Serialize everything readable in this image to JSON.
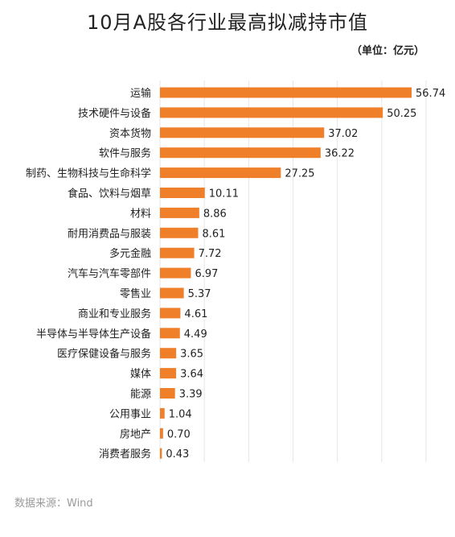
{
  "title": "10月A股各行业最高拟减持市值",
  "unit_note": "（单位：亿元）",
  "source": "数据来源：Wind",
  "colors": {
    "bar": "#f07f2a",
    "grid": "#e6e6e6"
  },
  "chart_data": {
    "type": "bar",
    "orientation": "horizontal",
    "title": "10月A股各行业最高拟减持市值",
    "xlabel": "",
    "ylabel": "",
    "xlim": [
      0,
      60
    ],
    "grid": true,
    "categories": [
      "运输",
      "技术硬件与设备",
      "资本货物",
      "软件与服务",
      "制药、生物科技与生命科学",
      "食品、饮料与烟草",
      "材料",
      "耐用消费品与服装",
      "多元金融",
      "汽车与汽车零部件",
      "零售业",
      "商业和专业服务",
      "半导体与半导体生产设备",
      "医疗保健设备与服务",
      "媒体",
      "能源",
      "公用事业",
      "房地产",
      "消费者服务"
    ],
    "values": [
      56.74,
      50.25,
      37.02,
      36.22,
      27.25,
      10.11,
      8.86,
      8.61,
      7.72,
      6.97,
      5.37,
      4.61,
      4.49,
      3.65,
      3.64,
      3.39,
      1.04,
      0.7,
      0.43
    ],
    "value_labels": [
      "56.74",
      "50.25",
      "37.02",
      "36.22",
      "27.25",
      "10.11",
      "8.86",
      "8.61",
      "7.72",
      "6.97",
      "5.37",
      "4.61",
      "4.49",
      "3.65",
      "3.64",
      "3.39",
      "1.04",
      "0.70",
      "0.43"
    ]
  }
}
